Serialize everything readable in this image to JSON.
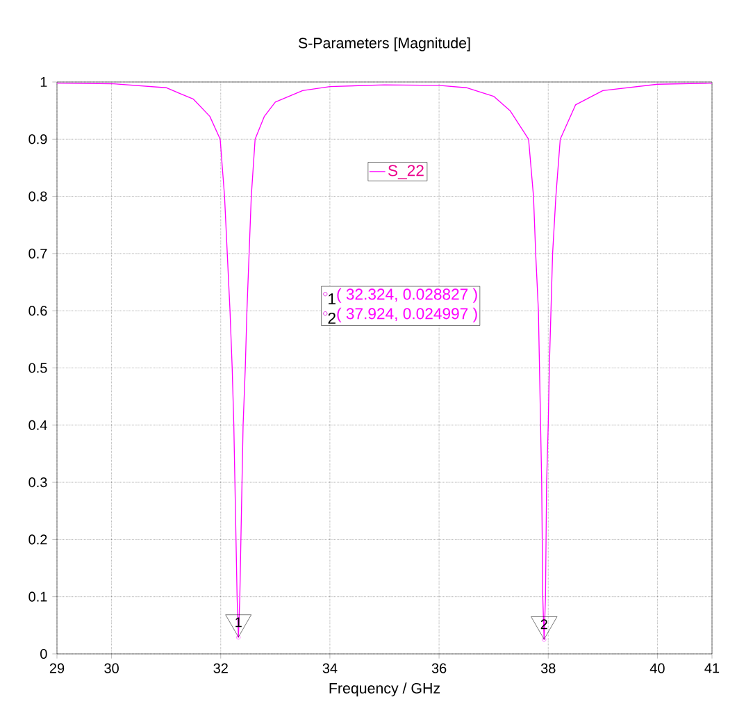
{
  "chart_data": {
    "type": "line",
    "title": "S-Parameters [Magnitude]",
    "xlabel": "Frequency / GHz",
    "xlim": [
      29,
      41
    ],
    "ylim": [
      0,
      1
    ],
    "xticks": [
      29,
      30,
      32,
      34,
      36,
      38,
      40,
      41
    ],
    "yticks": [
      0,
      {
        "value": 0.1,
        "label": "0.1"
      },
      {
        "value": 0.2,
        "label": "0.2"
      },
      {
        "value": 0.3,
        "label": "0.3"
      },
      {
        "value": 0.4,
        "label": "0.4"
      },
      {
        "value": 0.5,
        "label": "0.5"
      },
      {
        "value": 0.6,
        "label": "0.6"
      },
      {
        "value": 0.7,
        "label": "0.7"
      },
      {
        "value": 0.8,
        "label": "0.8"
      },
      {
        "value": 0.9,
        "label": "0.9"
      },
      1
    ],
    "grid": true,
    "legend": "top",
    "series": [
      {
        "name": "S_22",
        "color": "#ff00ff",
        "x": [
          29,
          30,
          31,
          31.5,
          31.8,
          31.99,
          32.07,
          32.12,
          32.17,
          32.21,
          32.24,
          32.26,
          32.28,
          32.3,
          32.324,
          32.35,
          32.37,
          32.39,
          32.41,
          32.45,
          32.48,
          32.52,
          32.56,
          32.63,
          32.8,
          33,
          33.5,
          34,
          35,
          36,
          36.5,
          37,
          37.3,
          37.64,
          37.73,
          37.77,
          37.82,
          37.84,
          37.86,
          37.88,
          37.89,
          37.9,
          37.924,
          37.95,
          37.96,
          37.97,
          38,
          38.02,
          38.05,
          38.08,
          38.14,
          38.22,
          38.5,
          39,
          40,
          41
        ],
        "values": [
          0.998,
          0.997,
          0.99,
          0.97,
          0.94,
          0.9,
          0.8,
          0.7,
          0.6,
          0.5,
          0.4,
          0.3,
          0.2,
          0.1,
          0.029,
          0.1,
          0.2,
          0.3,
          0.4,
          0.5,
          0.6,
          0.7,
          0.8,
          0.9,
          0.94,
          0.965,
          0.985,
          0.992,
          0.995,
          0.994,
          0.99,
          0.975,
          0.95,
          0.9,
          0.8,
          0.7,
          0.6,
          0.5,
          0.4,
          0.3,
          0.2,
          0.1,
          0.025,
          0.1,
          0.2,
          0.3,
          0.4,
          0.5,
          0.6,
          0.7,
          0.8,
          0.9,
          0.96,
          0.985,
          0.996,
          0.998
        ]
      }
    ],
    "annotations": [
      {
        "text": "1",
        "x": 32.324,
        "y": 0.028827
      },
      {
        "text": "2",
        "x": 37.924,
        "y": 0.024997
      },
      "( 32.324, 0.028827 )",
      "( 37.924, 0.024997 )"
    ]
  }
}
